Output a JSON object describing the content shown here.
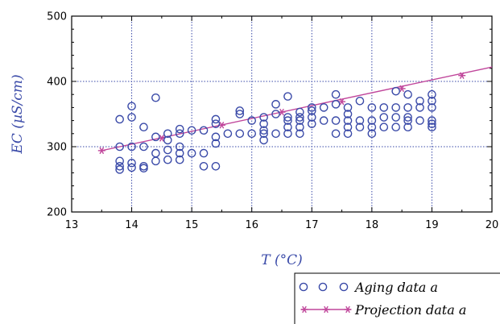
{
  "chart_data": {
    "type": "scatter",
    "xlabel": "T (°C)",
    "ylabel": "EC (µS/cm)",
    "xlim": [
      13,
      20
    ],
    "ylim": [
      200,
      500
    ],
    "x_ticks": [
      13,
      14,
      15,
      16,
      17,
      18,
      19,
      20
    ],
    "y_ticks": [
      200,
      300,
      400,
      500
    ],
    "x_tick_labels": [
      "13",
      "14",
      "15",
      "16",
      "17",
      "18",
      "19",
      "20"
    ],
    "y_tick_labels": [
      "200",
      "300",
      "400",
      "500"
    ],
    "grid": true,
    "legend_position": "bottom-right",
    "series": [
      {
        "name": "Aging data a",
        "legend_label": "Aging data a",
        "kind": "scatter",
        "marker": "circle",
        "color": "#3a4aa8",
        "points": [
          [
            13.8,
            342
          ],
          [
            13.8,
            300
          ],
          [
            13.8,
            278
          ],
          [
            13.8,
            270
          ],
          [
            13.8,
            265
          ],
          [
            14.0,
            362
          ],
          [
            14.0,
            345
          ],
          [
            14.0,
            300
          ],
          [
            14.0,
            275
          ],
          [
            14.0,
            268
          ],
          [
            14.2,
            330
          ],
          [
            14.2,
            300
          ],
          [
            14.2,
            270
          ],
          [
            14.2,
            267
          ],
          [
            14.4,
            375
          ],
          [
            14.4,
            315
          ],
          [
            14.4,
            290
          ],
          [
            14.4,
            278
          ],
          [
            14.6,
            320
          ],
          [
            14.6,
            310
          ],
          [
            14.6,
            295
          ],
          [
            14.6,
            280
          ],
          [
            14.8,
            327
          ],
          [
            14.8,
            320
          ],
          [
            14.8,
            300
          ],
          [
            14.8,
            290
          ],
          [
            14.8,
            280
          ],
          [
            15.0,
            325
          ],
          [
            15.0,
            290
          ],
          [
            15.2,
            325
          ],
          [
            15.2,
            290
          ],
          [
            15.2,
            270
          ],
          [
            15.4,
            342
          ],
          [
            15.4,
            335
          ],
          [
            15.4,
            315
          ],
          [
            15.4,
            305
          ],
          [
            15.4,
            270
          ],
          [
            15.6,
            320
          ],
          [
            15.8,
            355
          ],
          [
            15.8,
            350
          ],
          [
            15.8,
            320
          ],
          [
            16.0,
            340
          ],
          [
            16.0,
            320
          ],
          [
            16.2,
            345
          ],
          [
            16.2,
            335
          ],
          [
            16.2,
            325
          ],
          [
            16.2,
            320
          ],
          [
            16.2,
            310
          ],
          [
            16.4,
            365
          ],
          [
            16.4,
            350
          ],
          [
            16.4,
            320
          ],
          [
            16.6,
            377
          ],
          [
            16.6,
            345
          ],
          [
            16.6,
            340
          ],
          [
            16.6,
            330
          ],
          [
            16.6,
            320
          ],
          [
            16.8,
            353
          ],
          [
            16.8,
            345
          ],
          [
            16.8,
            340
          ],
          [
            16.8,
            330
          ],
          [
            16.8,
            320
          ],
          [
            17.0,
            360
          ],
          [
            17.0,
            355
          ],
          [
            17.0,
            345
          ],
          [
            17.0,
            335
          ],
          [
            17.2,
            360
          ],
          [
            17.2,
            340
          ],
          [
            17.4,
            380
          ],
          [
            17.4,
            365
          ],
          [
            17.4,
            340
          ],
          [
            17.4,
            320
          ],
          [
            17.6,
            360
          ],
          [
            17.6,
            350
          ],
          [
            17.6,
            340
          ],
          [
            17.6,
            330
          ],
          [
            17.6,
            320
          ],
          [
            17.8,
            370
          ],
          [
            17.8,
            340
          ],
          [
            17.8,
            330
          ],
          [
            18.0,
            360
          ],
          [
            18.0,
            340
          ],
          [
            18.0,
            330
          ],
          [
            18.0,
            320
          ],
          [
            18.2,
            360
          ],
          [
            18.2,
            345
          ],
          [
            18.2,
            330
          ],
          [
            18.4,
            385
          ],
          [
            18.4,
            360
          ],
          [
            18.4,
            345
          ],
          [
            18.4,
            330
          ],
          [
            18.6,
            380
          ],
          [
            18.6,
            360
          ],
          [
            18.6,
            345
          ],
          [
            18.6,
            340
          ],
          [
            18.6,
            330
          ],
          [
            18.8,
            370
          ],
          [
            18.8,
            360
          ],
          [
            18.8,
            340
          ],
          [
            19.0,
            380
          ],
          [
            19.0,
            370
          ],
          [
            19.0,
            360
          ],
          [
            19.0,
            340
          ],
          [
            19.0,
            335
          ],
          [
            19.0,
            330
          ]
        ]
      },
      {
        "name": "Projection data a",
        "legend_label": "Projection data a",
        "kind": "line",
        "marker": "asterisk",
        "color": "#c0469b",
        "line_points": [
          [
            13.5,
            294
          ],
          [
            20,
            422
          ]
        ],
        "marker_points": [
          [
            13.5,
            294
          ],
          [
            14.5,
            313
          ],
          [
            15.5,
            333
          ],
          [
            16.5,
            353
          ],
          [
            17.5,
            369
          ],
          [
            18.5,
            389
          ],
          [
            19.5,
            409
          ]
        ]
      }
    ]
  }
}
